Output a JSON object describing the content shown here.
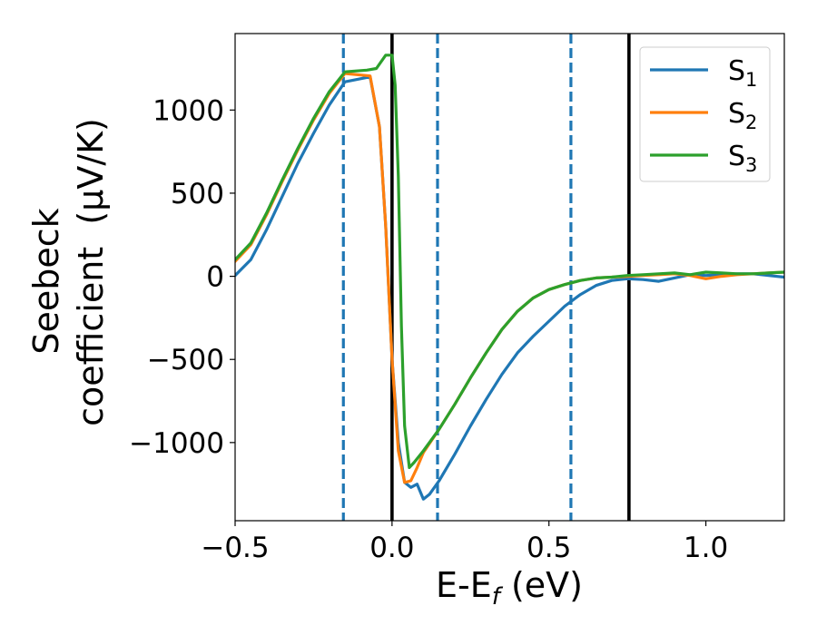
{
  "chart_data": {
    "type": "line",
    "xlabel": {
      "base": "E-E",
      "sub": "f",
      "unit": " (eV)"
    },
    "ylabel": {
      "line1": "Seebeck",
      "line2": "coefficient  (μV/K)"
    },
    "xlim": [
      -0.5,
      1.25
    ],
    "ylim": [
      -1470,
      1460
    ],
    "xticks": [
      -0.5,
      0.0,
      0.5,
      1.0
    ],
    "xtick_labels": [
      "−0.5",
      "0.0",
      "0.5",
      "1.0"
    ],
    "yticks": [
      -1000,
      -500,
      0,
      500,
      1000
    ],
    "ytick_labels": [
      "−1000",
      "−500",
      "0",
      "500",
      "1000"
    ],
    "grid": false,
    "legend_position": "top-right",
    "vlines": [
      {
        "x": -0.155,
        "style": "dashed",
        "color": "#1f77b4"
      },
      {
        "x": 0.0,
        "style": "solid",
        "color": "#000000"
      },
      {
        "x": 0.145,
        "style": "dashed",
        "color": "#1f77b4"
      },
      {
        "x": 0.57,
        "style": "dashed",
        "color": "#1f77b4"
      },
      {
        "x": 0.755,
        "style": "solid",
        "color": "#000000"
      }
    ],
    "series": [
      {
        "name": "S",
        "sub": "1",
        "color": "#1f77b4",
        "points": [
          [
            -0.5,
            5
          ],
          [
            -0.45,
            100
          ],
          [
            -0.4,
            280
          ],
          [
            -0.35,
            480
          ],
          [
            -0.3,
            680
          ],
          [
            -0.25,
            860
          ],
          [
            -0.2,
            1030
          ],
          [
            -0.15,
            1170
          ],
          [
            -0.07,
            1200
          ],
          [
            -0.04,
            900
          ],
          [
            -0.02,
            300
          ],
          [
            0.0,
            -500
          ],
          [
            0.02,
            -1000
          ],
          [
            0.04,
            -1240
          ],
          [
            0.06,
            -1270
          ],
          [
            0.08,
            -1250
          ],
          [
            0.1,
            -1340
          ],
          [
            0.12,
            -1310
          ],
          [
            0.15,
            -1230
          ],
          [
            0.2,
            -1070
          ],
          [
            0.25,
            -900
          ],
          [
            0.3,
            -740
          ],
          [
            0.35,
            -590
          ],
          [
            0.4,
            -460
          ],
          [
            0.45,
            -360
          ],
          [
            0.5,
            -270
          ],
          [
            0.55,
            -180
          ],
          [
            0.6,
            -110
          ],
          [
            0.65,
            -55
          ],
          [
            0.7,
            -25
          ],
          [
            0.75,
            -15
          ],
          [
            0.8,
            -20
          ],
          [
            0.85,
            -30
          ],
          [
            0.9,
            -10
          ],
          [
            0.95,
            10
          ],
          [
            1.0,
            5
          ],
          [
            1.05,
            10
          ],
          [
            1.1,
            15
          ],
          [
            1.15,
            15
          ],
          [
            1.2,
            5
          ],
          [
            1.25,
            -5
          ]
        ]
      },
      {
        "name": "S",
        "sub": "2",
        "color": "#ff7f0e",
        "points": [
          [
            -0.5,
            90
          ],
          [
            -0.45,
            190
          ],
          [
            -0.4,
            370
          ],
          [
            -0.35,
            570
          ],
          [
            -0.3,
            760
          ],
          [
            -0.25,
            940
          ],
          [
            -0.2,
            1100
          ],
          [
            -0.15,
            1220
          ],
          [
            -0.07,
            1205
          ],
          [
            -0.04,
            900
          ],
          [
            -0.02,
            300
          ],
          [
            0.0,
            -500
          ],
          [
            0.02,
            -1050
          ],
          [
            0.04,
            -1240
          ],
          [
            0.06,
            -1230
          ],
          [
            0.08,
            -1150
          ],
          [
            0.1,
            -1060
          ],
          [
            0.15,
            -920
          ],
          [
            0.2,
            -770
          ],
          [
            0.25,
            -610
          ],
          [
            0.3,
            -460
          ],
          [
            0.35,
            -320
          ],
          [
            0.4,
            -210
          ],
          [
            0.45,
            -130
          ],
          [
            0.5,
            -80
          ],
          [
            0.55,
            -50
          ],
          [
            0.6,
            -25
          ],
          [
            0.65,
            -10
          ],
          [
            0.7,
            -5
          ],
          [
            0.75,
            0
          ],
          [
            0.8,
            5
          ],
          [
            0.85,
            10
          ],
          [
            0.9,
            15
          ],
          [
            0.95,
            5
          ],
          [
            1.0,
            -15
          ],
          [
            1.05,
            0
          ],
          [
            1.1,
            10
          ],
          [
            1.15,
            15
          ],
          [
            1.2,
            20
          ],
          [
            1.25,
            25
          ]
        ]
      },
      {
        "name": "S",
        "sub": "3",
        "color": "#2ca02c",
        "points": [
          [
            -0.5,
            100
          ],
          [
            -0.45,
            200
          ],
          [
            -0.4,
            380
          ],
          [
            -0.35,
            580
          ],
          [
            -0.3,
            770
          ],
          [
            -0.25,
            950
          ],
          [
            -0.2,
            1110
          ],
          [
            -0.15,
            1230
          ],
          [
            -0.08,
            1240
          ],
          [
            -0.05,
            1250
          ],
          [
            -0.02,
            1330
          ],
          [
            0.0,
            1330
          ],
          [
            0.01,
            1150
          ],
          [
            0.02,
            600
          ],
          [
            0.03,
            -300
          ],
          [
            0.04,
            -900
          ],
          [
            0.055,
            -1150
          ],
          [
            0.07,
            -1120
          ],
          [
            0.1,
            -1050
          ],
          [
            0.15,
            -920
          ],
          [
            0.2,
            -770
          ],
          [
            0.25,
            -610
          ],
          [
            0.3,
            -460
          ],
          [
            0.35,
            -320
          ],
          [
            0.4,
            -210
          ],
          [
            0.45,
            -130
          ],
          [
            0.5,
            -80
          ],
          [
            0.55,
            -50
          ],
          [
            0.6,
            -25
          ],
          [
            0.65,
            -10
          ],
          [
            0.7,
            -5
          ],
          [
            0.75,
            5
          ],
          [
            0.8,
            10
          ],
          [
            0.85,
            15
          ],
          [
            0.9,
            20
          ],
          [
            0.95,
            10
          ],
          [
            1.0,
            25
          ],
          [
            1.05,
            20
          ],
          [
            1.1,
            15
          ],
          [
            1.15,
            15
          ],
          [
            1.2,
            20
          ],
          [
            1.25,
            25
          ]
        ]
      }
    ]
  }
}
